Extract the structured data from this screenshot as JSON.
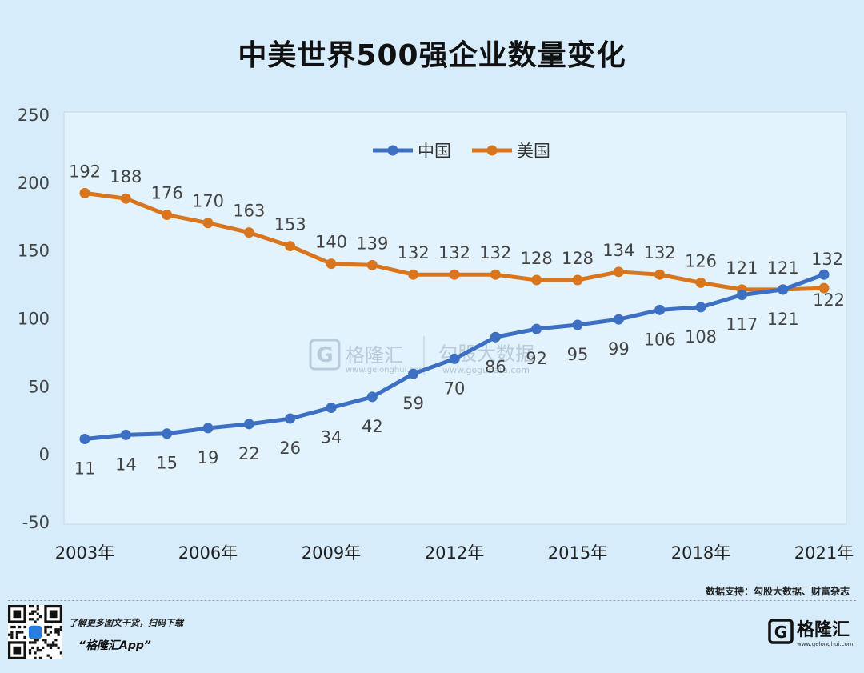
{
  "chart_data": {
    "type": "line",
    "title": "中美世界500强企业数量变化",
    "x": [
      "2003年",
      "2004年",
      "2005年",
      "2006年",
      "2007年",
      "2008年",
      "2009年",
      "2010年",
      "2011年",
      "2012年",
      "2013年",
      "2014年",
      "2015年",
      "2016年",
      "2017年",
      "2018年",
      "2019年",
      "2020年",
      "2021年"
    ],
    "x_tick_labels": [
      "2003年",
      "2006年",
      "2009年",
      "2012年",
      "2015年",
      "2018年",
      "2021年"
    ],
    "ylim": [
      -50,
      250
    ],
    "y_ticks": [
      -50,
      0,
      50,
      100,
      150,
      200,
      250
    ],
    "grid": false,
    "legend_position": "top-center",
    "series": [
      {
        "name": "中国",
        "color": "#3d6fc2",
        "label_position": "below",
        "values": [
          11,
          14,
          15,
          19,
          22,
          26,
          34,
          42,
          59,
          70,
          86,
          92,
          95,
          99,
          106,
          108,
          117,
          121,
          132
        ]
      },
      {
        "name": "美国",
        "color": "#d9761d",
        "label_position": "above",
        "values": [
          192,
          188,
          176,
          170,
          163,
          153,
          140,
          139,
          132,
          132,
          132,
          128,
          128,
          134,
          132,
          126,
          121,
          121,
          122
        ]
      }
    ]
  },
  "watermark": {
    "brand": "格隆汇",
    "product": "勾股大数据",
    "url": "www.gogudata.com",
    "brand_url": "www.gelonghui.com"
  },
  "source_text": "数据支持：勾股大数据、财富杂志",
  "footer": {
    "tagline": "了解更多图文干货，扫码下载",
    "app": "“格隆汇App”",
    "logo_text": "格隆汇",
    "logo_letter": "G",
    "logo_url": "www.gelonghui.com"
  }
}
